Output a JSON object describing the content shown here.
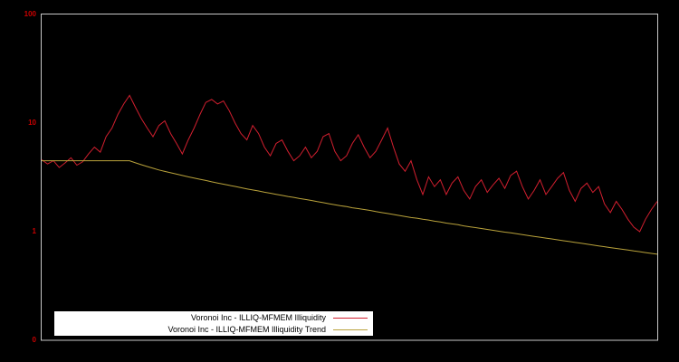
{
  "chart_data": {
    "type": "line",
    "title": "",
    "xlabel": "",
    "ylabel": "",
    "yscale": "log",
    "ylim": [
      0.1,
      100
    ],
    "grid": false,
    "legend_position": "bottom-left",
    "y_ticks": [
      {
        "label": "100",
        "value": 100
      },
      {
        "label": "10",
        "value": 10
      },
      {
        "label": "1",
        "value": 1
      },
      {
        "label": "0",
        "value": 0.1
      }
    ],
    "series": [
      {
        "name": "Voronoi Inc - ILLIQ-MFMEM Illiquidity",
        "color": "#d21f2f",
        "values": [
          4.6,
          4.2,
          4.5,
          3.9,
          4.3,
          4.8,
          4.1,
          4.4,
          5.2,
          6.0,
          5.4,
          7.5,
          9.0,
          12.0,
          15.0,
          18.0,
          14.0,
          11.0,
          9.0,
          7.5,
          9.5,
          10.5,
          8.0,
          6.5,
          5.2,
          7.0,
          9.0,
          12.0,
          15.5,
          16.5,
          15.0,
          16.0,
          13.0,
          10.0,
          8.0,
          7.0,
          9.5,
          8.0,
          6.0,
          5.0,
          6.5,
          7.0,
          5.5,
          4.5,
          5.0,
          6.0,
          4.8,
          5.5,
          7.5,
          8.0,
          5.5,
          4.5,
          5.0,
          6.5,
          7.8,
          6.0,
          4.8,
          5.5,
          7.0,
          9.0,
          6.0,
          4.2,
          3.6,
          4.5,
          3.0,
          2.2,
          3.2,
          2.6,
          3.0,
          2.2,
          2.8,
          3.2,
          2.4,
          2.0,
          2.6,
          3.0,
          2.3,
          2.7,
          3.1,
          2.5,
          3.3,
          3.6,
          2.6,
          2.0,
          2.4,
          3.0,
          2.2,
          2.6,
          3.1,
          3.5,
          2.4,
          1.9,
          2.5,
          2.8,
          2.3,
          2.6,
          1.8,
          1.5,
          1.9,
          1.6,
          1.3,
          1.1,
          1.0,
          1.3,
          1.6,
          1.9
        ]
      },
      {
        "name": "Voronoi Inc - ILLIQ-MFMEM Illiquidity Trend",
        "color": "#b9a23b",
        "values": [
          4.5,
          4.5,
          4.5,
          4.5,
          4.5,
          4.5,
          4.5,
          4.5,
          4.5,
          4.5,
          4.5,
          4.5,
          4.5,
          4.5,
          4.5,
          4.5,
          4.31,
          4.14,
          3.98,
          3.84,
          3.7,
          3.59,
          3.49,
          3.39,
          3.29,
          3.2,
          3.12,
          3.04,
          2.96,
          2.88,
          2.81,
          2.74,
          2.67,
          2.61,
          2.54,
          2.48,
          2.42,
          2.37,
          2.31,
          2.26,
          2.21,
          2.16,
          2.11,
          2.07,
          2.02,
          1.98,
          1.94,
          1.89,
          1.85,
          1.81,
          1.77,
          1.73,
          1.7,
          1.66,
          1.63,
          1.6,
          1.57,
          1.53,
          1.5,
          1.47,
          1.44,
          1.41,
          1.38,
          1.35,
          1.33,
          1.3,
          1.28,
          1.25,
          1.23,
          1.2,
          1.18,
          1.16,
          1.13,
          1.11,
          1.09,
          1.07,
          1.05,
          1.03,
          1.01,
          0.99,
          0.975,
          0.957,
          0.94,
          0.922,
          0.905,
          0.889,
          0.873,
          0.857,
          0.841,
          0.826,
          0.811,
          0.796,
          0.782,
          0.768,
          0.754,
          0.74,
          0.727,
          0.714,
          0.701,
          0.689,
          0.677,
          0.665,
          0.654,
          0.642,
          0.631,
          0.62
        ]
      }
    ]
  },
  "colors": {
    "background": "#000000",
    "frame": "#c8c8c8",
    "tick_label": "#cc0000",
    "legend_background": "#ffffff",
    "legend_text": "#000000"
  }
}
